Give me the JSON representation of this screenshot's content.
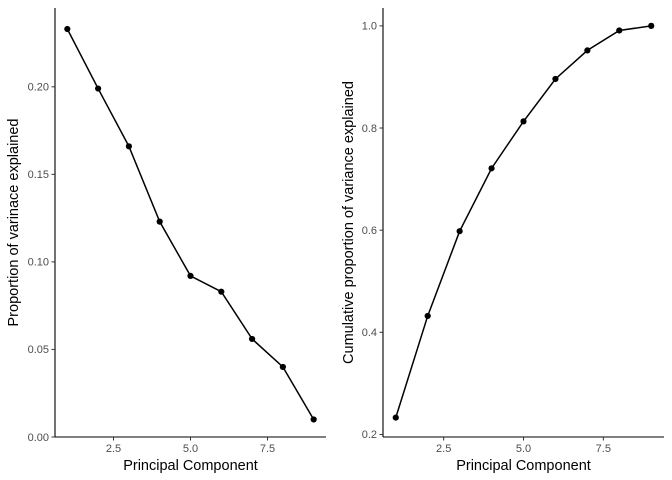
{
  "chart_data": [
    {
      "type": "line",
      "x": [
        1,
        2,
        3,
        4,
        5,
        6,
        7,
        8,
        9
      ],
      "y": [
        0.233,
        0.199,
        0.166,
        0.123,
        0.092,
        0.083,
        0.056,
        0.04,
        0.01
      ],
      "xlabel": "Principal Component",
      "ylabel": "Proportion of varinace explained",
      "xlim": [
        0.6,
        9.4
      ],
      "ylim": [
        0.0,
        0.245
      ],
      "xticks": [
        2.5,
        5.0,
        7.5
      ],
      "xtick_labels": [
        "2.5",
        "5.0",
        "7.5"
      ],
      "yticks": [
        0.0,
        0.05,
        0.1,
        0.15,
        0.2
      ],
      "ytick_labels": [
        "0.00",
        "0.05",
        "0.10",
        "0.15",
        "0.20"
      ],
      "grid": false,
      "markers": true,
      "color": "#000000"
    },
    {
      "type": "line",
      "x": [
        1,
        2,
        3,
        4,
        5,
        6,
        7,
        8,
        9
      ],
      "y": [
        0.233,
        0.432,
        0.598,
        0.721,
        0.813,
        0.896,
        0.952,
        0.991,
        1.0
      ],
      "xlabel": "Principal Component",
      "ylabel": "Cumulative proportion of variance explained",
      "xlim": [
        0.6,
        9.4
      ],
      "ylim": [
        0.195,
        1.035
      ],
      "xticks": [
        2.5,
        5.0,
        7.5
      ],
      "xtick_labels": [
        "2.5",
        "5.0",
        "7.5"
      ],
      "yticks": [
        0.2,
        0.4,
        0.6,
        0.8,
        1.0
      ],
      "ytick_labels": [
        "0.2",
        "0.4",
        "0.6",
        "0.8",
        "1.0"
      ],
      "grid": false,
      "markers": true,
      "color": "#000000"
    }
  ]
}
